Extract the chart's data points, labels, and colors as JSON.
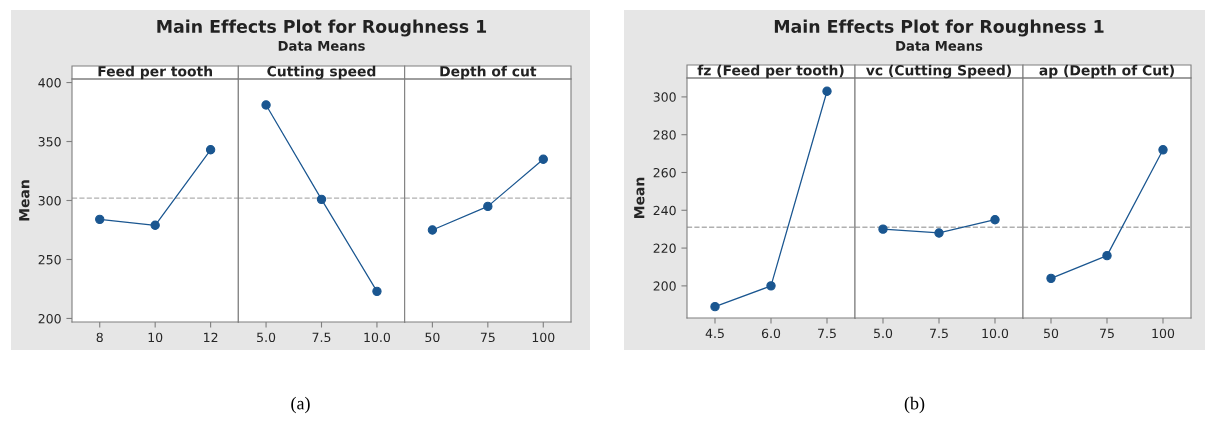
{
  "chart_data": [
    {
      "type": "line",
      "title": "Feed per tooth",
      "ylabel": "Mean",
      "annotations": [
        "Main Effects Plot for Roughness 1",
        "Data Means",
        "(a)"
      ],
      "categories": [
        "8",
        "10",
        "12"
      ],
      "values": [
        284,
        279,
        343
      ],
      "color": "#1a5690",
      "marker": "circle",
      "ylim": [
        197,
        403
      ],
      "yticks": [
        200,
        250,
        300,
        350,
        400
      ],
      "ref_lines": [
        {
          "axis": "y",
          "value": 302,
          "color": "#b0b0b0",
          "line_style": "dashed"
        }
      ],
      "grid": false
    },
    {
      "type": "line",
      "title": "Cutting speed",
      "categories": [
        "5.0",
        "7.5",
        "10.0"
      ],
      "values": [
        381,
        301,
        223
      ],
      "color": "#1a5690",
      "marker": "circle",
      "ylim": [
        197,
        403
      ],
      "tick_labels": "x",
      "ref_lines": [
        {
          "axis": "y",
          "value": 302,
          "color": "#b0b0b0",
          "line_style": "dashed"
        }
      ],
      "grid": false
    },
    {
      "type": "line",
      "title": "Depth of cut",
      "categories": [
        "50",
        "75",
        "100"
      ],
      "values": [
        275,
        295,
        335
      ],
      "color": "#1a5690",
      "marker": "circle",
      "ylim": [
        197,
        403
      ],
      "tick_labels": "x",
      "ref_lines": [
        {
          "axis": "y",
          "value": 302,
          "color": "#b0b0b0",
          "line_style": "dashed"
        }
      ],
      "grid": false
    },
    {
      "type": "line",
      "title": "fz (Feed per tooth)",
      "ylabel": "Mean",
      "annotations": [
        "Main Effects Plot for Roughness 1",
        "Data Means",
        "(b)"
      ],
      "categories": [
        "4.5",
        "6.0",
        "7.5"
      ],
      "values": [
        189,
        200,
        303
      ],
      "color": "#1a5690",
      "marker": "circle",
      "ylim": [
        183,
        310
      ],
      "yticks": [
        200,
        220,
        240,
        260,
        280,
        300
      ],
      "ref_lines": [
        {
          "axis": "y",
          "value": 231,
          "color": "#b0b0b0",
          "line_style": "dashed"
        }
      ],
      "grid": false
    },
    {
      "type": "line",
      "title": "vc (Cutting Speed)",
      "categories": [
        "5.0",
        "7.5",
        "10.0"
      ],
      "values": [
        230,
        228,
        235
      ],
      "color": "#1a5690",
      "marker": "circle",
      "ylim": [
        183,
        310
      ],
      "tick_labels": "x",
      "ref_lines": [
        {
          "axis": "y",
          "value": 231,
          "color": "#b0b0b0",
          "line_style": "dashed"
        }
      ],
      "grid": false
    },
    {
      "type": "line",
      "title": "ap (Depth of Cut)",
      "categories": [
        "50",
        "75",
        "100"
      ],
      "values": [
        204,
        216,
        272
      ],
      "color": "#1a5690",
      "marker": "circle",
      "ylim": [
        183,
        310
      ],
      "tick_labels": "x",
      "ref_lines": [
        {
          "axis": "y",
          "value": 231,
          "color": "#b0b0b0",
          "line_style": "dashed"
        }
      ],
      "grid": false
    }
  ]
}
